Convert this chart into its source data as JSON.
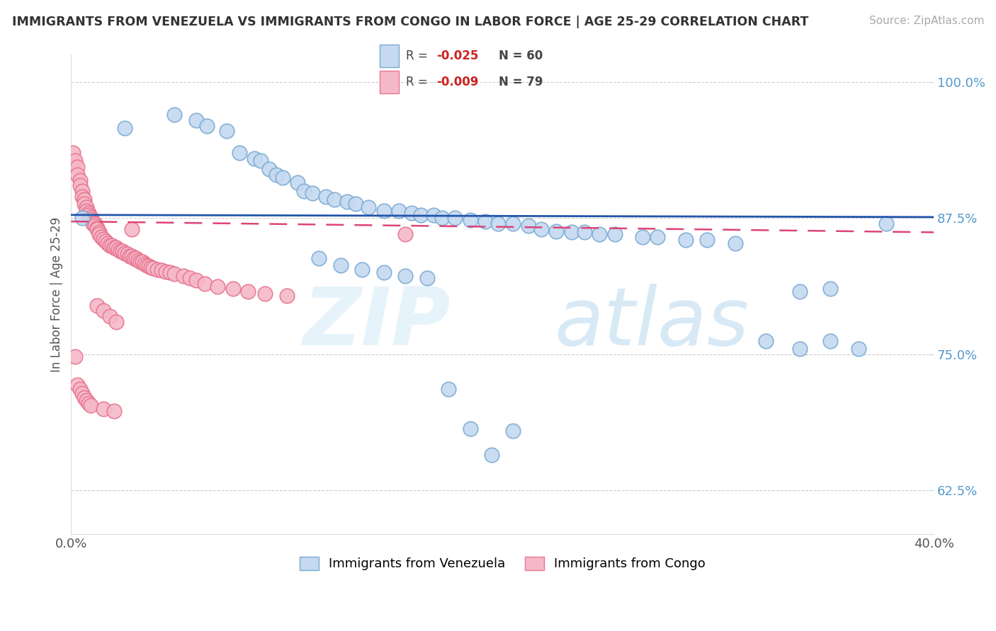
{
  "title": "IMMIGRANTS FROM VENEZUELA VS IMMIGRANTS FROM CONGO IN LABOR FORCE | AGE 25-29 CORRELATION CHART",
  "source": "Source: ZipAtlas.com",
  "ylabel": "In Labor Force | Age 25-29",
  "xlim": [
    0.0,
    0.4
  ],
  "ylim": [
    0.585,
    1.025
  ],
  "yticks": [
    0.625,
    0.75,
    0.875,
    1.0
  ],
  "yticklabels": [
    "62.5%",
    "75.0%",
    "87.5%",
    "100.0%"
  ],
  "venezuela_color": "#c5d9f0",
  "venezuela_edge": "#7aabd4",
  "congo_color": "#f5b8c8",
  "congo_edge": "#e8758f",
  "trend_venezuela_color": "#2255aa",
  "trend_congo_color": "#dd4477",
  "background_color": "#ffffff",
  "grid_color": "#cccccc",
  "watermark_zip": "ZIP",
  "watermark_atlas": "atlas",
  "venezuela_x": [
    0.005,
    0.025,
    0.048,
    0.058,
    0.063,
    0.072,
    0.078,
    0.085,
    0.088,
    0.092,
    0.095,
    0.098,
    0.105,
    0.108,
    0.112,
    0.118,
    0.122,
    0.128,
    0.132,
    0.138,
    0.145,
    0.152,
    0.158,
    0.162,
    0.168,
    0.172,
    0.178,
    0.185,
    0.192,
    0.198,
    0.205,
    0.212,
    0.218,
    0.225,
    0.232,
    0.238,
    0.245,
    0.252,
    0.265,
    0.272,
    0.285,
    0.295,
    0.308,
    0.322,
    0.338,
    0.352,
    0.365,
    0.378,
    0.338,
    0.352,
    0.115,
    0.125,
    0.135,
    0.145,
    0.155,
    0.165,
    0.175,
    0.185,
    0.195,
    0.205
  ],
  "venezuela_y": [
    0.875,
    0.958,
    0.97,
    0.965,
    0.96,
    0.955,
    0.935,
    0.93,
    0.928,
    0.92,
    0.915,
    0.912,
    0.908,
    0.9,
    0.898,
    0.895,
    0.892,
    0.89,
    0.888,
    0.885,
    0.882,
    0.882,
    0.88,
    0.878,
    0.878,
    0.875,
    0.875,
    0.873,
    0.872,
    0.87,
    0.87,
    0.868,
    0.865,
    0.863,
    0.862,
    0.862,
    0.86,
    0.86,
    0.858,
    0.858,
    0.855,
    0.855,
    0.852,
    0.762,
    0.755,
    0.762,
    0.755,
    0.87,
    0.808,
    0.81,
    0.838,
    0.832,
    0.828,
    0.825,
    0.822,
    0.82,
    0.718,
    0.682,
    0.658,
    0.68
  ],
  "congo_x": [
    0.001,
    0.002,
    0.003,
    0.003,
    0.004,
    0.004,
    0.005,
    0.005,
    0.006,
    0.006,
    0.007,
    0.007,
    0.008,
    0.008,
    0.009,
    0.009,
    0.01,
    0.01,
    0.011,
    0.011,
    0.012,
    0.012,
    0.013,
    0.013,
    0.014,
    0.015,
    0.016,
    0.017,
    0.018,
    0.019,
    0.02,
    0.021,
    0.022,
    0.023,
    0.024,
    0.025,
    0.026,
    0.027,
    0.028,
    0.029,
    0.03,
    0.031,
    0.032,
    0.033,
    0.034,
    0.035,
    0.036,
    0.037,
    0.038,
    0.04,
    0.042,
    0.044,
    0.046,
    0.048,
    0.052,
    0.055,
    0.058,
    0.062,
    0.068,
    0.075,
    0.082,
    0.09,
    0.1,
    0.012,
    0.015,
    0.018,
    0.021,
    0.028,
    0.155,
    0.002,
    0.003,
    0.004,
    0.005,
    0.006,
    0.007,
    0.008,
    0.009,
    0.015,
    0.02
  ],
  "congo_y": [
    0.935,
    0.928,
    0.922,
    0.915,
    0.91,
    0.905,
    0.9,
    0.895,
    0.892,
    0.888,
    0.885,
    0.882,
    0.88,
    0.878,
    0.876,
    0.874,
    0.872,
    0.87,
    0.87,
    0.868,
    0.866,
    0.865,
    0.862,
    0.86,
    0.858,
    0.856,
    0.854,
    0.852,
    0.85,
    0.85,
    0.848,
    0.848,
    0.846,
    0.845,
    0.845,
    0.843,
    0.842,
    0.84,
    0.84,
    0.838,
    0.838,
    0.836,
    0.835,
    0.835,
    0.833,
    0.832,
    0.831,
    0.83,
    0.829,
    0.828,
    0.827,
    0.826,
    0.825,
    0.824,
    0.822,
    0.82,
    0.818,
    0.815,
    0.812,
    0.81,
    0.808,
    0.806,
    0.804,
    0.795,
    0.79,
    0.785,
    0.78,
    0.865,
    0.86,
    0.748,
    0.722,
    0.718,
    0.714,
    0.71,
    0.708,
    0.705,
    0.703,
    0.7,
    0.698
  ]
}
